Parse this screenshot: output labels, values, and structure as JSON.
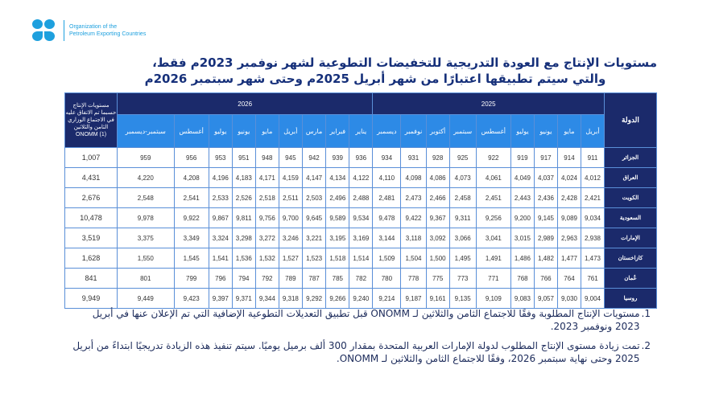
{
  "logo": {
    "line1": "Organization of the",
    "line2": "Petroleum Exporting Countries"
  },
  "title": {
    "line1": "مستويات الإنتاج مع العودة التدريجية للتخفيضات التطوعية لشهر نوفمبر 2023م فقط،",
    "line2": "والتي سيتم تطبيقها اعتبارًا من شهر أبريل 2025م وحتى شهر سبتمبر 2026م"
  },
  "table": {
    "country_header": "الدولة",
    "onomm_header": "مستويات الإنتاج حسبما تم الاتفاق عليه في الاجتماع الوزاري الثامن والثلاثين ONOMM (1)",
    "years": [
      "2025",
      "2026"
    ],
    "months_2025": [
      "أبريل",
      "مايو",
      "يونيو",
      "يوليو",
      "أغسطس",
      "سبتمبر",
      "أكتوبر",
      "نوفمبر",
      "ديسمبر"
    ],
    "months_2026": [
      "يناير",
      "فبراير",
      "مارس",
      "أبريل",
      "مايو",
      "يونيو",
      "يوليو",
      "أغسطس",
      "سبتمبر-ديسمبر"
    ],
    "rows": [
      {
        "country": "الجزائر",
        "values": [
          "911",
          "914",
          "917",
          "919",
          "922",
          "925",
          "928",
          "931",
          "934",
          "936",
          "939",
          "942",
          "945",
          "948",
          "951",
          "953",
          "956",
          "959"
        ],
        "onomm": "1,007"
      },
      {
        "country": "العراق",
        "values": [
          "4,012",
          "4,024",
          "4,037",
          "4,049",
          "4,061",
          "4,073",
          "4,086",
          "4,098",
          "4,110",
          "4,122",
          "4,134",
          "4,147",
          "4,159",
          "4,171",
          "4,183",
          "4,196",
          "4,208",
          "4,220"
        ],
        "onomm": "4,431"
      },
      {
        "country": "الكويت",
        "values": [
          "2,421",
          "2,428",
          "2,436",
          "2,443",
          "2,451",
          "2,458",
          "2,466",
          "2,473",
          "2,481",
          "2,488",
          "2,496",
          "2,503",
          "2,511",
          "2,518",
          "2,526",
          "2,533",
          "2,541",
          "2,548"
        ],
        "onomm": "2,676"
      },
      {
        "country": "السعودية",
        "values": [
          "9,034",
          "9,089",
          "9,145",
          "9,200",
          "9,256",
          "9,311",
          "9,367",
          "9,422",
          "9,478",
          "9,534",
          "9,589",
          "9,645",
          "9,700",
          "9,756",
          "9,811",
          "9,867",
          "9,922",
          "9,978"
        ],
        "onomm": "10,478"
      },
      {
        "country": "الإمارات",
        "values": [
          "2,938",
          "2,963",
          "2,989",
          "3,015",
          "3,041",
          "3,066",
          "3,092",
          "3,118",
          "3,144",
          "3,169",
          "3,195",
          "3,221",
          "3,246",
          "3,272",
          "3,298",
          "3,324",
          "3,349",
          "3,375"
        ],
        "onomm": "3,519"
      },
      {
        "country": "كازاخستان",
        "values": [
          "1,473",
          "1,477",
          "1,482",
          "1,486",
          "1,491",
          "1,495",
          "1,500",
          "1,504",
          "1,509",
          "1,514",
          "1,518",
          "1,523",
          "1,527",
          "1,532",
          "1,536",
          "1,541",
          "1,545",
          "1,550"
        ],
        "onomm": "1,628"
      },
      {
        "country": "عُمان",
        "values": [
          "761",
          "764",
          "766",
          "768",
          "771",
          "773",
          "775",
          "778",
          "780",
          "782",
          "785",
          "787",
          "789",
          "792",
          "794",
          "796",
          "799",
          "801"
        ],
        "onomm": "841"
      },
      {
        "country": "روسيا",
        "values": [
          "9,004",
          "9,030",
          "9,057",
          "9,083",
          "9,109",
          "9,135",
          "9,161",
          "9,187",
          "9,214",
          "9,240",
          "9,266",
          "9,292",
          "9,318",
          "9,344",
          "9,371",
          "9,397",
          "9,423",
          "9,449"
        ],
        "onomm": "9,949"
      }
    ]
  },
  "notes": [
    {
      "num": "1.",
      "text": "مستويات الإنتاج المطلوبة وفقًا للاجتماع الثامن والثلاثين لـ ONOMM قبل تطبيق التعديلات التطوعية الإضافية التي تم الإعلان عنها في أبريل 2023 ونوفمبر 2023."
    },
    {
      "num": "2.",
      "text": "تمت زيادة مستوى الإنتاج المطلوب لدولة الإمارات العربية المتحدة بمقدار 300 ألف برميل يوميًا. سيتم تنفيذ هذه الزيادة تدريجيًا ابتداءً من أبريل 2025 وحتى نهاية سبتمبر 2026، وفقًا للاجتماع الثامن والثلاثين لـ ONOMM."
    }
  ]
}
